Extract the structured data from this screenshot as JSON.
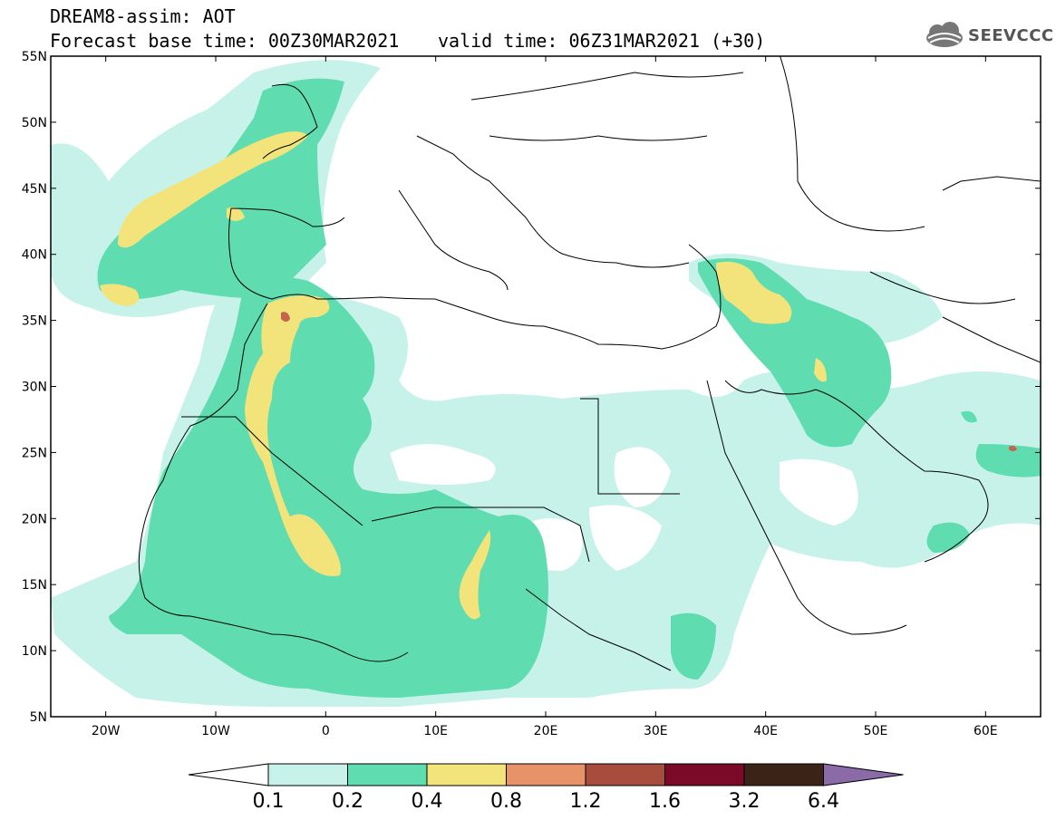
{
  "header": {
    "title": "DREAM8-assim: AOT",
    "base_time": "Forecast base time: 00Z30MAR2021",
    "valid_time": "valid time: 06Z31MAR2021 (+30)"
  },
  "logo": {
    "text": "SEEVCCC",
    "icon": "cloud-icon"
  },
  "map": {
    "lat_labels": [
      "55N",
      "50N",
      "45N",
      "40N",
      "35N",
      "30N",
      "25N",
      "20N",
      "15N",
      "10N",
      "5N"
    ],
    "lon_labels": [
      "20W",
      "10W",
      "0",
      "10E",
      "20E",
      "30E",
      "40E",
      "50E",
      "60E"
    ],
    "extent": {
      "lon": [
        -25,
        65
      ],
      "lat": [
        5,
        55
      ]
    }
  },
  "colorbar": {
    "levels": [
      "0.1",
      "0.2",
      "0.4",
      "0.8",
      "1.2",
      "1.6",
      "3.2",
      "6.4"
    ],
    "colors": [
      "#ffffff",
      "#c6f2ea",
      "#5fdcb0",
      "#f2e37a",
      "#e8926a",
      "#a84c3e",
      "#7a0a28",
      "#3b2417",
      "#8b6aa8"
    ]
  }
}
